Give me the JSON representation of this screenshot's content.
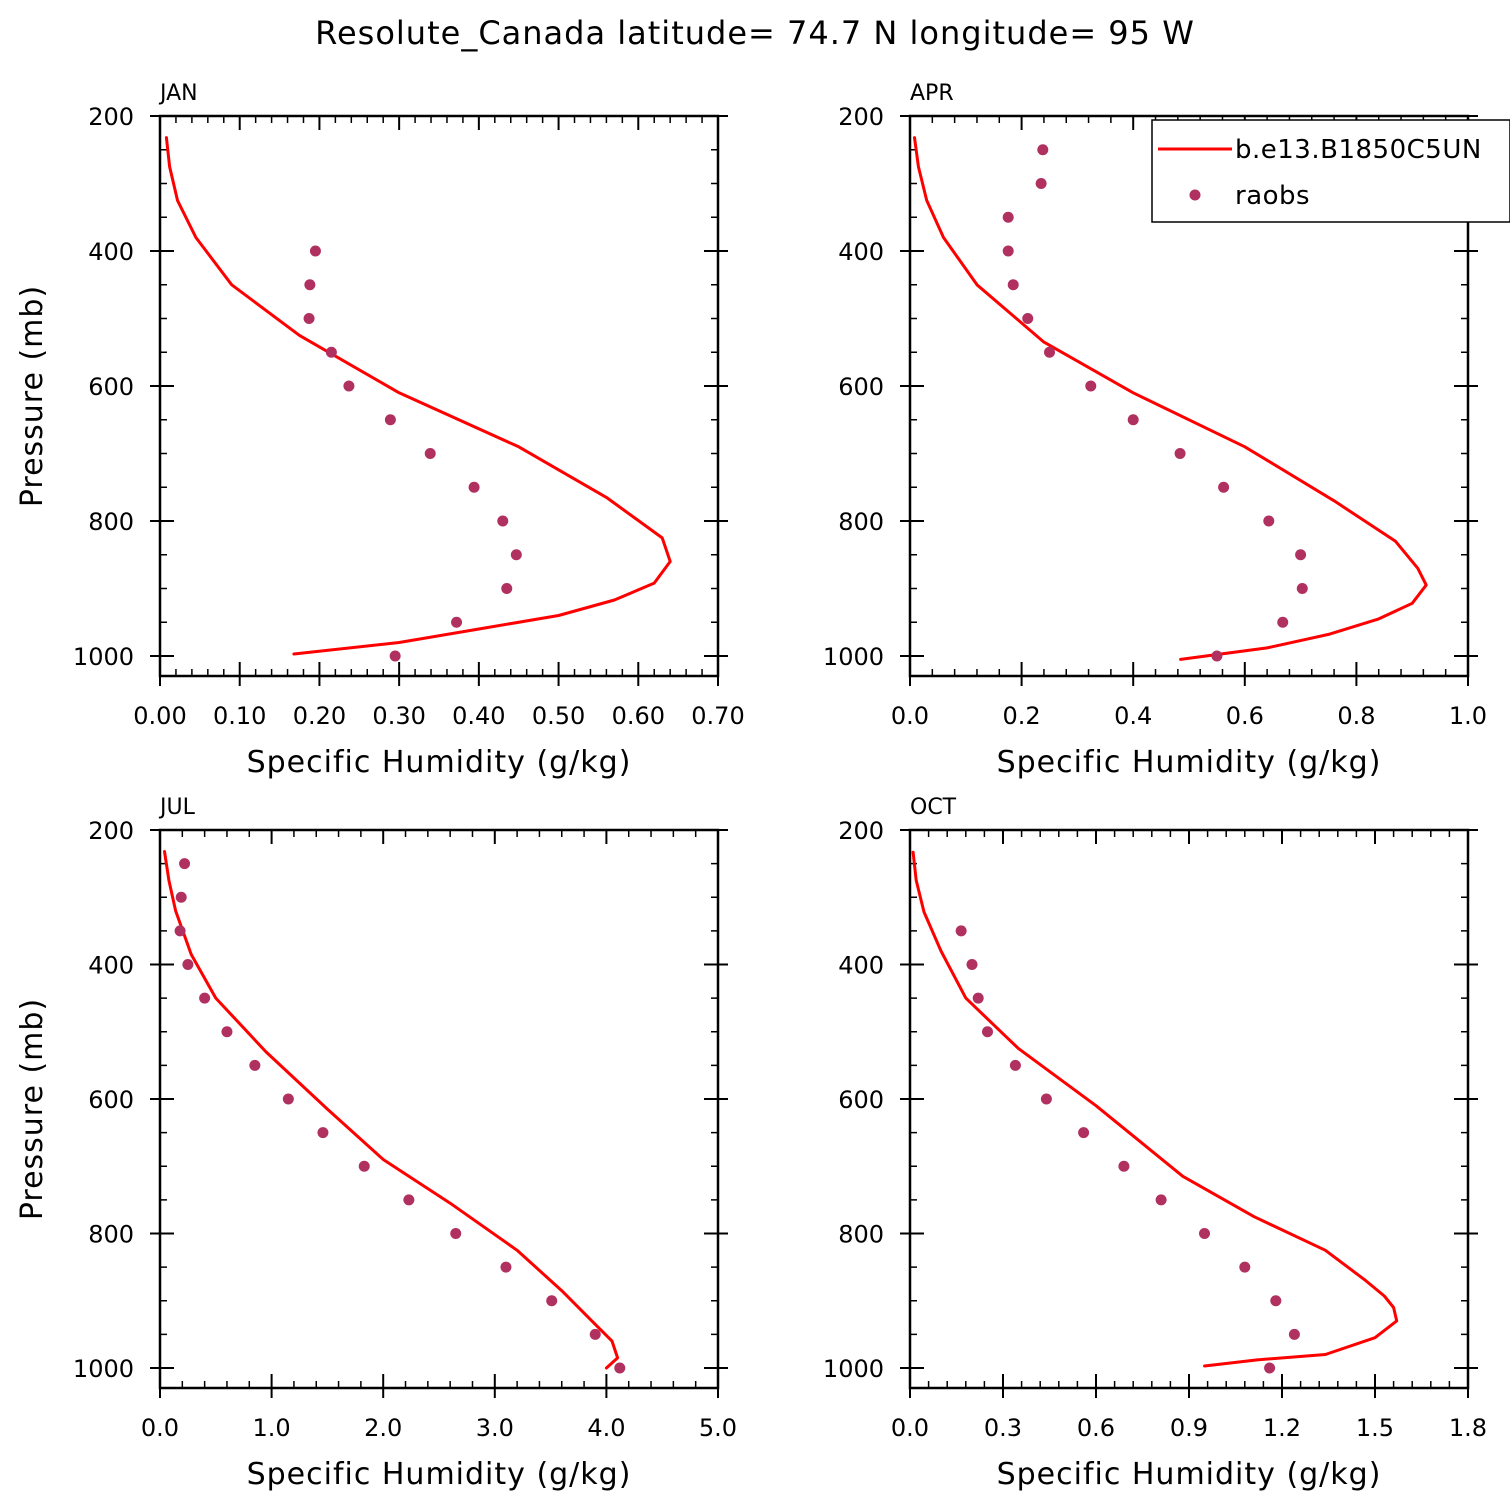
{
  "title": "Resolute_Canada  latitude= 74.7 N longitude= 95 W",
  "legend": {
    "placement": "top-right",
    "items": [
      {
        "label": "b.e13.B1850C5UN",
        "style": "line",
        "color": "#ff0000"
      },
      {
        "label": "raobs",
        "style": "marker",
        "color": "#b03060"
      }
    ]
  },
  "chart_data": [
    {
      "type": "line",
      "panel": "JAN",
      "xlabel": "Specific Humidity (g/kg)",
      "ylabel": "Pressure (mb)",
      "xlim": [
        0,
        0.7
      ],
      "ylim": [
        200,
        1000
      ],
      "y_inverted": true,
      "xticks": [
        0,
        0.1,
        0.2,
        0.3,
        0.4,
        0.5,
        0.6,
        0.7
      ],
      "xtick_labels": [
        "0.00",
        "0.10",
        "0.20",
        "0.30",
        "0.40",
        "0.50",
        "0.60",
        "0.70"
      ],
      "yticks": [
        200,
        400,
        600,
        800,
        1000
      ],
      "ytick_labels": [
        "200",
        "400",
        "600",
        "800",
        "1000"
      ],
      "series": [
        {
          "name": "b.e13.B1850C5UN",
          "type": "line",
          "color": "#ff0000",
          "x": [
            0.168,
            0.3,
            0.4,
            0.5,
            0.57,
            0.62,
            0.64,
            0.63,
            0.56,
            0.45,
            0.3,
            0.175,
            0.09,
            0.045,
            0.022,
            0.012,
            0.008
          ],
          "y": [
            997,
            980,
            960,
            940,
            917,
            892,
            860,
            825,
            765,
            690,
            610,
            525,
            450,
            380,
            325,
            275,
            232
          ]
        },
        {
          "name": "raobs",
          "type": "scatter",
          "color": "#b03060",
          "x": [
            0.295,
            0.372,
            0.435,
            0.447,
            0.43,
            0.394,
            0.339,
            0.289,
            0.237,
            0.215,
            0.187,
            0.188,
            0.195
          ],
          "y": [
            1000,
            950,
            900,
            850,
            800,
            750,
            700,
            650,
            600,
            550,
            500,
            450,
            400
          ]
        }
      ]
    },
    {
      "type": "line",
      "panel": "APR",
      "xlabel": "Specific Humidity (g/kg)",
      "ylabel": "",
      "xlim": [
        0,
        1.0
      ],
      "ylim": [
        200,
        1000
      ],
      "y_inverted": true,
      "xticks": [
        0,
        0.2,
        0.4,
        0.6,
        0.8,
        1.0
      ],
      "xtick_labels": [
        "0.0",
        "0.2",
        "0.4",
        "0.6",
        "0.8",
        "1.0"
      ],
      "yticks": [
        200,
        400,
        600,
        800,
        1000
      ],
      "ytick_labels": [
        "200",
        "400",
        "600",
        "800",
        "1000"
      ],
      "series": [
        {
          "name": "b.e13.B1850C5UN",
          "type": "line",
          "color": "#ff0000",
          "x": [
            0.485,
            0.64,
            0.75,
            0.84,
            0.9,
            0.925,
            0.91,
            0.87,
            0.76,
            0.6,
            0.4,
            0.24,
            0.12,
            0.06,
            0.03,
            0.015,
            0.008
          ],
          "y": [
            1005,
            988,
            968,
            945,
            922,
            895,
            870,
            830,
            770,
            690,
            610,
            535,
            450,
            380,
            325,
            275,
            232
          ]
        },
        {
          "name": "raobs",
          "type": "scatter",
          "color": "#b03060",
          "x": [
            0.55,
            0.668,
            0.703,
            0.7,
            0.643,
            0.562,
            0.484,
            0.4,
            0.324,
            0.25,
            0.211,
            0.185,
            0.176,
            0.176,
            0.235,
            0.238
          ],
          "y": [
            1000,
            950,
            900,
            850,
            800,
            750,
            700,
            650,
            600,
            550,
            500,
            450,
            400,
            350,
            300,
            250
          ]
        }
      ]
    },
    {
      "type": "line",
      "panel": "JUL",
      "xlabel": "Specific Humidity (g/kg)",
      "ylabel": "Pressure (mb)",
      "xlim": [
        0,
        5.0
      ],
      "ylim": [
        200,
        1000
      ],
      "y_inverted": true,
      "xticks": [
        0,
        1,
        2,
        3,
        4,
        5
      ],
      "xtick_labels": [
        "0.0",
        "1.0",
        "2.0",
        "3.0",
        "4.0",
        "5.0"
      ],
      "yticks": [
        200,
        400,
        600,
        800,
        1000
      ],
      "ytick_labels": [
        "200",
        "400",
        "600",
        "800",
        "1000"
      ],
      "series": [
        {
          "name": "b.e13.B1850C5UN",
          "type": "line",
          "color": "#ff0000",
          "x": [
            4.0,
            4.1,
            4.05,
            3.9,
            3.6,
            3.2,
            2.6,
            2.0,
            1.5,
            0.95,
            0.5,
            0.28,
            0.14,
            0.08,
            0.04
          ],
          "y": [
            1000,
            985,
            960,
            935,
            885,
            825,
            755,
            690,
            615,
            530,
            450,
            385,
            320,
            275,
            232
          ]
        },
        {
          "name": "raobs",
          "type": "scatter",
          "color": "#b03060",
          "x": [
            4.12,
            3.9,
            3.51,
            3.1,
            2.65,
            2.23,
            1.83,
            1.46,
            1.15,
            0.85,
            0.6,
            0.4,
            0.25,
            0.18,
            0.19,
            0.22
          ],
          "y": [
            1000,
            950,
            900,
            850,
            800,
            750,
            700,
            650,
            600,
            550,
            500,
            450,
            400,
            350,
            300,
            250
          ]
        }
      ]
    },
    {
      "type": "line",
      "panel": "OCT",
      "xlabel": "Specific Humidity (g/kg)",
      "ylabel": "",
      "xlim": [
        0,
        1.8
      ],
      "ylim": [
        200,
        1000
      ],
      "y_inverted": true,
      "xticks": [
        0,
        0.3,
        0.6,
        0.9,
        1.2,
        1.5,
        1.8
      ],
      "xtick_labels": [
        "0.0",
        "0.3",
        "0.6",
        "0.9",
        "1.2",
        "1.5",
        "1.8"
      ],
      "yticks": [
        200,
        400,
        600,
        800,
        1000
      ],
      "ytick_labels": [
        "200",
        "400",
        "600",
        "800",
        "1000"
      ],
      "series": [
        {
          "name": "b.e13.B1850C5UN",
          "type": "line",
          "color": "#ff0000",
          "x": [
            0.95,
            1.12,
            1.34,
            1.5,
            1.57,
            1.56,
            1.53,
            1.47,
            1.34,
            1.11,
            0.88,
            0.6,
            0.35,
            0.18,
            0.1,
            0.045,
            0.02,
            0.01
          ],
          "y": [
            997,
            988,
            980,
            955,
            930,
            910,
            893,
            870,
            825,
            775,
            715,
            610,
            525,
            450,
            380,
            322,
            275,
            233
          ]
        },
        {
          "name": "raobs",
          "type": "scatter",
          "color": "#b03060",
          "x": [
            1.16,
            1.24,
            1.18,
            1.08,
            0.95,
            0.81,
            0.69,
            0.56,
            0.44,
            0.34,
            0.25,
            0.22,
            0.2,
            0.165
          ],
          "y": [
            1000,
            950,
            900,
            850,
            800,
            750,
            700,
            650,
            600,
            550,
            500,
            450,
            400,
            350
          ]
        }
      ]
    }
  ]
}
